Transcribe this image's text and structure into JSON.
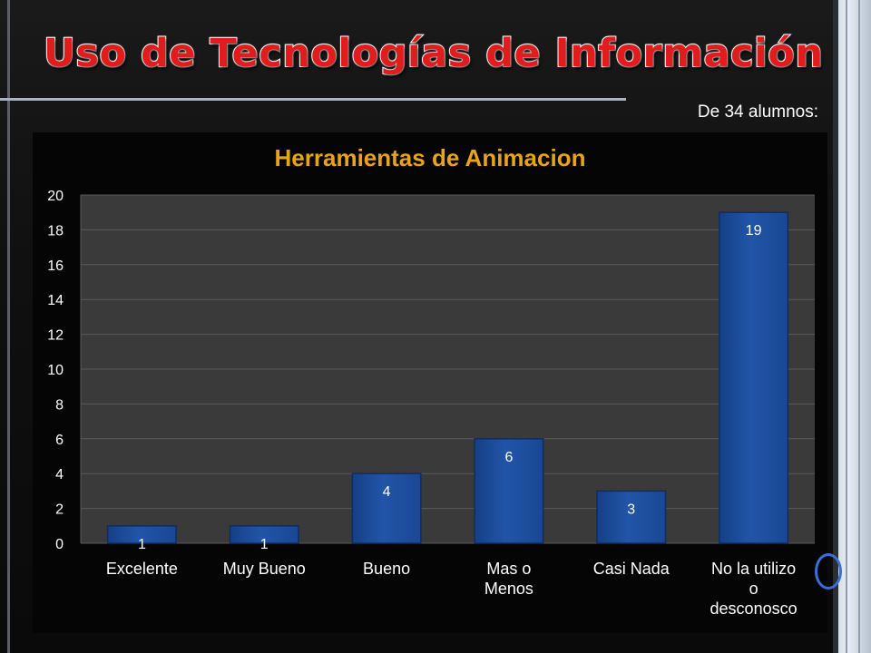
{
  "slide": {
    "title": "Uso de Tecnologías de Información",
    "subtitle": "De 34 alumnos:"
  },
  "colors": {
    "title": "#e01c1c",
    "chart_title": "#e8a317",
    "bar": "#2155a8",
    "grid": "#5a5a5a",
    "plot_bg": "#3a3a3a"
  },
  "chart_data": {
    "type": "bar",
    "title": "Herramientas de Animacion",
    "categories": [
      [
        "Excelente"
      ],
      [
        "Muy Bueno"
      ],
      [
        "Bueno"
      ],
      [
        "Mas o",
        "Menos"
      ],
      [
        "Casi Nada"
      ],
      [
        "No la utilizo",
        "o",
        "desconosco"
      ]
    ],
    "values": [
      1,
      1,
      4,
      6,
      3,
      19
    ],
    "data_labels": [
      "1",
      "1",
      "4",
      "6",
      "3",
      "19"
    ],
    "ylim": [
      0,
      20
    ],
    "yticks": [
      0,
      2,
      4,
      6,
      8,
      10,
      12,
      14,
      16,
      18,
      20
    ],
    "grid": true,
    "legend": "none"
  }
}
